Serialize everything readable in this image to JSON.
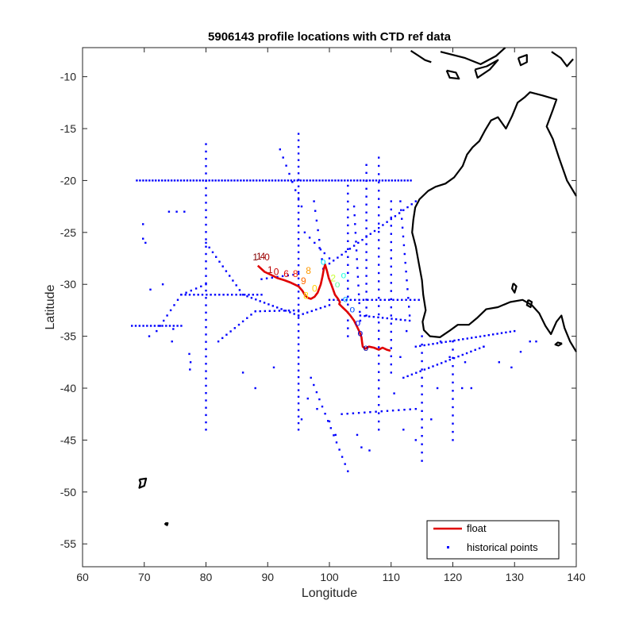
{
  "chart_data": {
    "type": "scatter",
    "title": "5906143 profile locations with CTD ref data",
    "xlabel": "Longitude",
    "ylabel": "Latitude",
    "xlim": [
      60,
      140
    ],
    "ylim": [
      -57.2,
      -7.2
    ],
    "xticks": [
      60,
      70,
      80,
      90,
      100,
      110,
      120,
      130,
      140
    ],
    "yticks": [
      -10,
      -15,
      -20,
      -25,
      -30,
      -35,
      -40,
      -45,
      -50,
      -55
    ],
    "grid": false,
    "legend_position": "bottom-right",
    "series": [
      {
        "name": "float",
        "color": "#e00000",
        "style": "line",
        "x": [
          88.4,
          89.5,
          90.6,
          91.6,
          92.7,
          93.6,
          94.3,
          95.0,
          95.6,
          96.0,
          96.5,
          97.0,
          97.6,
          98.1,
          98.6,
          98.9,
          99.1,
          99.3,
          99.6,
          99.9,
          100.3,
          100.6,
          100.9,
          101.4,
          101.7,
          101.6,
          102.1,
          102.8,
          103.4,
          104.0,
          104.5,
          104.9,
          105.2,
          105.3,
          105.4,
          105.8,
          106.4,
          107.2,
          108.0,
          108.6,
          109.3,
          109.9
        ],
        "y": [
          -28.2,
          -28.8,
          -29.1,
          -29.4,
          -29.6,
          -29.8,
          -30.0,
          -30.2,
          -30.6,
          -31.0,
          -31.3,
          -31.4,
          -31.2,
          -30.8,
          -30.0,
          -29.2,
          -28.5,
          -28.1,
          -28.7,
          -29.4,
          -30.0,
          -30.5,
          -31.0,
          -31.4,
          -31.7,
          -31.9,
          -32.2,
          -32.6,
          -33.0,
          -33.5,
          -34.1,
          -34.6,
          -35.1,
          -35.6,
          -36.0,
          -36.2,
          -36.0,
          -36.1,
          -36.3,
          -36.1,
          -36.3,
          -36.4
        ]
      },
      {
        "name": "historical points",
        "color": "#0000ff",
        "style": "points",
        "segments": [
          {
            "from": [
              68.8,
              -20.0
            ],
            "to": [
              113.2,
              -20.0
            ],
            "n": 88
          },
          {
            "from": [
              80.0,
              -16.5
            ],
            "to": [
              80.0,
              -44.0
            ],
            "n": 40
          },
          {
            "from": [
              95.0,
              -15.5
            ],
            "to": [
              95.0,
              -44.0
            ],
            "n": 46
          },
          {
            "from": [
              68.0,
              -34.0
            ],
            "to": [
              76.0,
              -34.0
            ],
            "n": 14
          },
          {
            "from": [
              80.0,
              -26.0
            ],
            "to": [
              86.0,
              -31.0
            ],
            "n": 12
          },
          {
            "from": [
              86.0,
              -31.0
            ],
            "to": [
              95.0,
              -33.0
            ],
            "n": 14
          },
          {
            "from": [
              95.0,
              -33.0
            ],
            "to": [
              100.0,
              -32.0
            ],
            "n": 8
          },
          {
            "from": [
              82.0,
              -35.5
            ],
            "to": [
              88.0,
              -32.6
            ],
            "n": 10
          },
          {
            "from": [
              88.0,
              -32.6
            ],
            "to": [
              95.0,
              -32.5
            ],
            "n": 10
          },
          {
            "from": [
              76.0,
              -31.0
            ],
            "to": [
              89.0,
              -31.0
            ],
            "n": 20
          },
          {
            "from": [
              72.0,
              -34.5
            ],
            "to": [
              76.0,
              -31.0
            ],
            "n": 8
          },
          {
            "from": [
              76.0,
              -31.0
            ],
            "to": [
              80.0,
              -30.0
            ],
            "n": 6
          },
          {
            "from": [
              89.0,
              -29.5
            ],
            "to": [
              95.0,
              -29.0
            ],
            "n": 8
          },
          {
            "from": [
              108.0,
              -17.8
            ],
            "to": [
              108.0,
              -44.0
            ],
            "n": 34
          },
          {
            "from": [
              106.0,
              -18.5
            ],
            "to": [
              106.0,
              -33.0
            ],
            "n": 20
          },
          {
            "from": [
              103.0,
              -20.5
            ],
            "to": [
              103.0,
              -35.0
            ],
            "n": 20
          },
          {
            "from": [
              110.0,
              -22.0
            ],
            "to": [
              110.0,
              -38.5
            ],
            "n": 22
          },
          {
            "from": [
              100.0,
              -28.0
            ],
            "to": [
              114.0,
              -22.0
            ],
            "n": 22
          },
          {
            "from": [
              100.0,
              -31.5
            ],
            "to": [
              114.5,
              -31.5
            ],
            "n": 22
          },
          {
            "from": [
              105.0,
              -33.0
            ],
            "to": [
              113.0,
              -33.5
            ],
            "n": 12
          },
          {
            "from": [
              115.0,
              -35.0
            ],
            "to": [
              115.0,
              -47.0
            ],
            "n": 16
          },
          {
            "from": [
              114.0,
              -36.0
            ],
            "to": [
              130.0,
              -34.5
            ],
            "n": 24
          },
          {
            "from": [
              112.0,
              -39.0
            ],
            "to": [
              125.0,
              -36.0
            ],
            "n": 20
          },
          {
            "from": [
              120.0,
              -35.5
            ],
            "to": [
              120.0,
              -45.0
            ],
            "n": 13
          },
          {
            "from": [
              97.0,
              -39.0
            ],
            "to": [
              103.0,
              -48.0
            ],
            "n": 14
          },
          {
            "from": [
              102.0,
              -42.5
            ],
            "to": [
              114.0,
              -42.0
            ],
            "n": 14
          },
          {
            "from": [
              92.0,
              -17.0
            ],
            "to": [
              95.5,
              -22.5
            ],
            "n": 8
          },
          {
            "from": [
              96.0,
              -25.0
            ],
            "to": [
              100.0,
              -27.5
            ],
            "n": 6
          },
          {
            "from": [
              97.5,
              -22.0
            ],
            "to": [
              99.0,
              -28.5
            ],
            "n": 8
          },
          {
            "from": [
              111.5,
              -22.0
            ],
            "to": [
              113.0,
              -33.0
            ],
            "n": 14
          },
          {
            "from": [
              104.0,
              -22.5
            ],
            "to": [
              105.0,
              -33.5
            ],
            "n": 14
          },
          {
            "from": [
              74.0,
              -23.0
            ],
            "to": [
              76.5,
              -23.0
            ],
            "n": 3
          }
        ],
        "clusters": [
          [
            69.8,
            -24.2
          ],
          [
            69.8,
            -25.6
          ],
          [
            70.2,
            -26.0
          ],
          [
            77.5,
            -37.5
          ],
          [
            77.4,
            -38.2
          ],
          [
            77.3,
            -36.7
          ],
          [
            71.0,
            -30.5
          ],
          [
            73.0,
            -30.0
          ],
          [
            74.5,
            -35.5
          ],
          [
            74.7,
            -34.3
          ],
          [
            70.8,
            -35.0
          ],
          [
            98.0,
            -42.0
          ],
          [
            100.0,
            -43.2
          ],
          [
            101.0,
            -44.5
          ],
          [
            104.5,
            -44.5
          ],
          [
            105.2,
            -45.7
          ],
          [
            106.5,
            -46.0
          ],
          [
            112.0,
            -44.0
          ],
          [
            114.0,
            -45.0
          ],
          [
            116.5,
            -43.0
          ],
          [
            117.5,
            -40.0
          ],
          [
            121.5,
            -40.0
          ],
          [
            123.0,
            -40.0
          ],
          [
            125.0,
            -36.0
          ],
          [
            127.5,
            -37.5
          ],
          [
            129.5,
            -38.0
          ],
          [
            131.0,
            -36.5
          ],
          [
            132.5,
            -35.5
          ],
          [
            133.5,
            -35.5
          ],
          [
            96.5,
            -41.0
          ],
          [
            88.0,
            -40.0
          ],
          [
            86.0,
            -38.5
          ],
          [
            91.0,
            -38.0
          ],
          [
            95.5,
            -43.0
          ],
          [
            118.0,
            -35.5
          ],
          [
            119.5,
            -37.0
          ],
          [
            122.0,
            -37.5
          ],
          [
            111.5,
            -37.0
          ],
          [
            110.5,
            -40.5
          ],
          [
            112.5,
            -34.5
          ]
        ]
      }
    ],
    "point_labels": [
      {
        "text": "1",
        "x": 88.0,
        "y": -27.7,
        "color": "#7f0000"
      },
      {
        "text": "1",
        "x": 88.6,
        "y": -27.6,
        "color": "#8b0000"
      },
      {
        "text": "4",
        "x": 89.2,
        "y": -27.6,
        "color": "#990000"
      },
      {
        "text": "0",
        "x": 89.9,
        "y": -27.7,
        "color": "#a30000"
      },
      {
        "text": "1",
        "x": 90.4,
        "y": -28.9,
        "color": "#b50000"
      },
      {
        "text": "0",
        "x": 91.4,
        "y": -29.1,
        "color": "#c80000"
      },
      {
        "text": "6",
        "x": 93.0,
        "y": -29.3,
        "color": "#e00000"
      },
      {
        "text": "8",
        "x": 94.5,
        "y": -29.3,
        "color": "#ff2a00"
      },
      {
        "text": "9",
        "x": 95.8,
        "y": -30.0,
        "color": "#ff6a00"
      },
      {
        "text": "8",
        "x": 96.6,
        "y": -29.0,
        "color": "#ff9900"
      },
      {
        "text": "0",
        "x": 97.6,
        "y": -30.7,
        "color": "#ffcc00"
      },
      {
        "text": "8",
        "x": 96.2,
        "y": -31.4,
        "color": "#ffe000"
      },
      {
        "text": "2",
        "x": 100.6,
        "y": -29.7,
        "color": "#c8ff37"
      },
      {
        "text": "o",
        "x": 101.3,
        "y": -30.3,
        "color": "#60ff9f"
      },
      {
        "text": "o",
        "x": 102.3,
        "y": -29.4,
        "color": "#20ffdf"
      },
      {
        "text": "o",
        "x": 99.0,
        "y": -28.1,
        "color": "#00e0ff"
      },
      {
        "text": "o",
        "x": 102.6,
        "y": -31.7,
        "color": "#00a0ff"
      },
      {
        "text": "o",
        "x": 103.7,
        "y": -32.7,
        "color": "#0050ff"
      },
      {
        "text": "o",
        "x": 104.6,
        "y": -34.0,
        "color": "#0010ff"
      },
      {
        "text": "o",
        "x": 105.0,
        "y": -35.0,
        "color": "#0000d0"
      },
      {
        "text": "o",
        "x": 105.9,
        "y": -36.4,
        "color": "#00009f"
      }
    ]
  },
  "legend": {
    "items": [
      {
        "label": "float",
        "color": "#e00000",
        "marker": "line"
      },
      {
        "label": "historical points",
        "color": "#0000ff",
        "marker": "dot"
      }
    ]
  },
  "coastline_color": "#000000"
}
